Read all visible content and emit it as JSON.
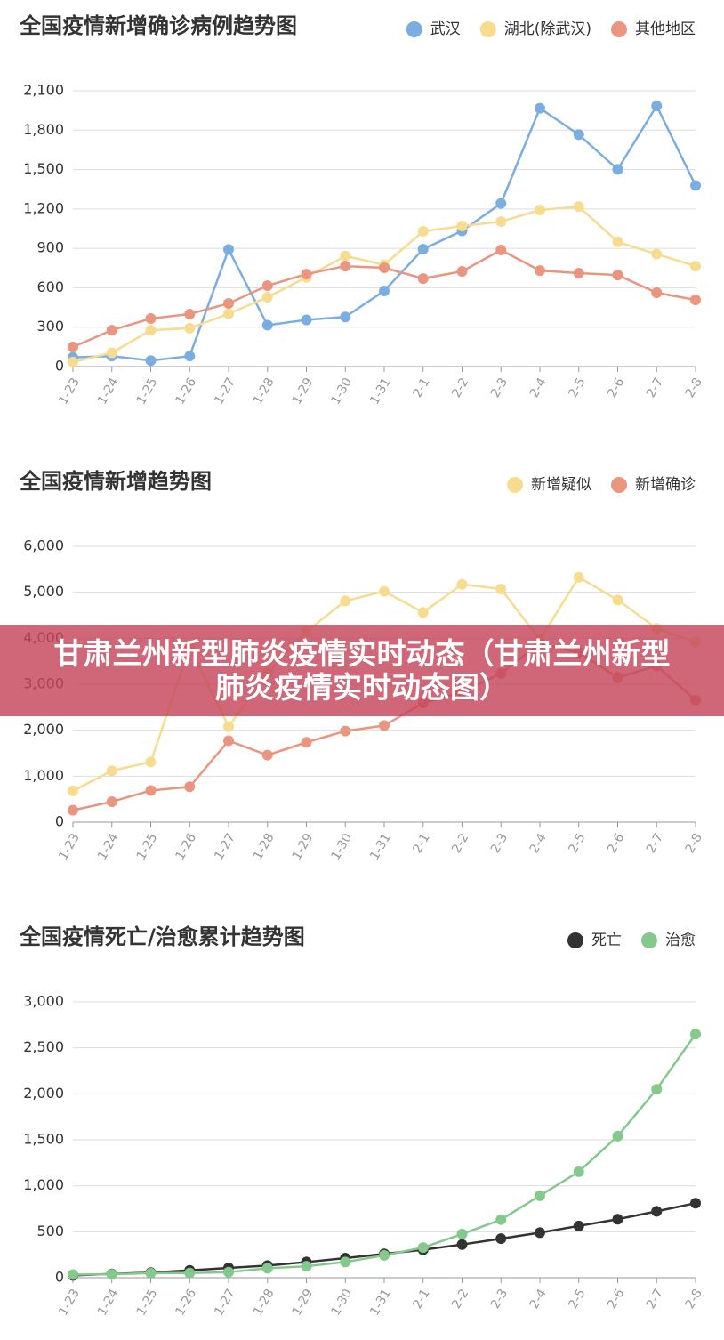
{
  "chart_data": [
    {
      "type": "line",
      "title": "全国疫情新增确诊病例趋势图",
      "legend": "top-right",
      "grid": true,
      "categories": [
        "1-23",
        "1-24",
        "1-25",
        "1-26",
        "1-27",
        "1-28",
        "1-29",
        "1-30",
        "1-31",
        "2-1",
        "2-2",
        "2-3",
        "2-4",
        "2-5",
        "2-6",
        "2-7",
        "2-8"
      ],
      "ylim": [
        0,
        2100
      ],
      "yticks": [
        0,
        300,
        600,
        900,
        {
          "value": 1200,
          "label": "1,200"
        },
        {
          "value": 1500,
          "label": "1,500"
        },
        {
          "value": 1800,
          "label": "1,800"
        },
        {
          "value": 2100,
          "label": "2,100"
        }
      ],
      "series": [
        {
          "name": "武汉",
          "color": "#7aaee0",
          "values": [
            70,
            80,
            46,
            80,
            892,
            315,
            356,
            378,
            576,
            894,
            1033,
            1242,
            1967,
            1766,
            1501,
            1985,
            1379
          ]
        },
        {
          "name": "湖北(除武汉)",
          "color": "#f7dc8f",
          "values": [
            35,
            105,
            277,
            292,
            402,
            528,
            680,
            842,
            775,
            1030,
            1070,
            1104,
            1192,
            1218,
            950,
            856,
            765
          ]
        },
        {
          "name": "其他地区",
          "color": "#ea9580",
          "values": [
            149,
            277,
            366,
            400,
            481,
            616,
            704,
            765,
            752,
            670,
            725,
            887,
            731,
            711,
            697,
            562,
            508
          ]
        }
      ]
    },
    {
      "type": "line",
      "title": "全国疫情新增趋势图",
      "legend": "top-right",
      "grid": true,
      "categories": [
        "1-23",
        "1-24",
        "1-25",
        "1-26",
        "1-27",
        "1-28",
        "1-29",
        "1-30",
        "1-31",
        "2-1",
        "2-2",
        "2-3",
        "2-4",
        "2-5",
        "2-6",
        "2-7",
        "2-8"
      ],
      "ylim": [
        0,
        6000
      ],
      "yticks": [
        0,
        {
          "value": 1000,
          "label": "1,000"
        },
        {
          "value": 2000,
          "label": "2,000"
        },
        {
          "value": 3000,
          "label": "3,000"
        },
        {
          "value": 4000,
          "label": "4,000"
        },
        {
          "value": 5000,
          "label": "5,000"
        },
        {
          "value": 6000,
          "label": "6,000"
        }
      ],
      "series": [
        {
          "name": "新增疑似",
          "color": "#f7dc8f",
          "values": [
            680,
            1118,
            1309,
            3806,
            2077,
            3248,
            4148,
            4812,
            5019,
            4562,
            5173,
            5072,
            3971,
            5328,
            4833,
            4214,
            3916
          ]
        },
        {
          "name": "新增确诊",
          "color": "#ea9580",
          "values": [
            259,
            444,
            688,
            769,
            1771,
            1459,
            1737,
            1982,
            2102,
            2590,
            2829,
            3235,
            3887,
            3694,
            3143,
            3399,
            2656
          ]
        }
      ]
    },
    {
      "type": "line",
      "title": "全国疫情死亡/治愈累计趋势图",
      "legend": "top-right",
      "grid": true,
      "categories": [
        "1-23",
        "1-24",
        "1-25",
        "1-26",
        "1-27",
        "1-28",
        "1-29",
        "1-30",
        "1-31",
        "2-1",
        "2-2",
        "2-3",
        "2-4",
        "2-5",
        "2-6",
        "2-7",
        "2-8"
      ],
      "ylim": [
        0,
        3000
      ],
      "yticks": [
        0,
        500,
        {
          "value": 1000,
          "label": "1,000"
        },
        {
          "value": 1500,
          "label": "1,500"
        },
        {
          "value": 2000,
          "label": "2,000"
        },
        {
          "value": 2500,
          "label": "2,500"
        },
        {
          "value": 3000,
          "label": "3,000"
        }
      ],
      "series": [
        {
          "name": "死亡",
          "color": "#333333",
          "values": [
            25,
            41,
            56,
            80,
            106,
            132,
            170,
            213,
            259,
            304,
            361,
            425,
            490,
            563,
            636,
            722,
            811
          ]
        },
        {
          "name": "治愈",
          "color": "#84c98b",
          "values": [
            34,
            38,
            49,
            51,
            60,
            103,
            124,
            171,
            243,
            328,
            475,
            632,
            892,
            1153,
            1540,
            2050,
            2649
          ]
        }
      ]
    }
  ],
  "banner": {
    "text": "甘肃兰州新型肺炎疫情实时动态（甘肃兰州新型肺炎疫情实时动态图）"
  }
}
